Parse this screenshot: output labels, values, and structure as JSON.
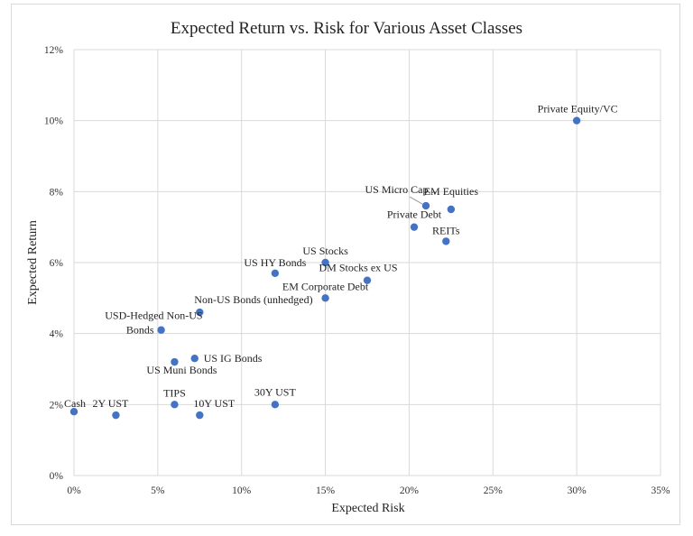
{
  "chart_data": {
    "type": "scatter",
    "title": "Expected Return vs. Risk for Various Asset Classes",
    "xlabel": "Expected Risk",
    "ylabel": "Expected Return",
    "xlim": [
      0,
      0.35
    ],
    "ylim": [
      0,
      0.12
    ],
    "x_ticks": [
      0,
      0.05,
      0.1,
      0.15,
      0.2,
      0.25,
      0.3,
      0.35
    ],
    "x_tick_labels": [
      "0%",
      "5%",
      "10%",
      "15%",
      "20%",
      "25%",
      "30%",
      "35%"
    ],
    "y_ticks": [
      0,
      0.02,
      0.04,
      0.06,
      0.08,
      0.1,
      0.12
    ],
    "y_tick_labels": [
      "0%",
      "2%",
      "4%",
      "6%",
      "8%",
      "10%",
      "12%"
    ],
    "grid": true,
    "marker_color": "#4472C4",
    "points": [
      {
        "label": "Cash",
        "x": 0.0,
        "y": 0.018
      },
      {
        "label": "2Y UST",
        "x": 0.025,
        "y": 0.017
      },
      {
        "label": "TIPS",
        "x": 0.06,
        "y": 0.02
      },
      {
        "label": "10Y UST",
        "x": 0.075,
        "y": 0.017
      },
      {
        "label": "30Y UST",
        "x": 0.12,
        "y": 0.02
      },
      {
        "label": "US Muni Bonds",
        "x": 0.06,
        "y": 0.032
      },
      {
        "label": "US IG Bonds",
        "x": 0.072,
        "y": 0.033
      },
      {
        "label": "USD-Hedged Non-US Bonds",
        "x": 0.052,
        "y": 0.041
      },
      {
        "label": "Non-US Bonds (unhedged)",
        "x": 0.075,
        "y": 0.046
      },
      {
        "label": "US HY Bonds",
        "x": 0.12,
        "y": 0.057
      },
      {
        "label": "US Stocks",
        "x": 0.15,
        "y": 0.06
      },
      {
        "label": "EM Corporate Debt",
        "x": 0.15,
        "y": 0.05
      },
      {
        "label": "DM Stocks ex US",
        "x": 0.175,
        "y": 0.055
      },
      {
        "label": "Private Debt",
        "x": 0.203,
        "y": 0.07
      },
      {
        "label": "US Micro Cap...",
        "x": 0.21,
        "y": 0.076
      },
      {
        "label": "EM Equities",
        "x": 0.225,
        "y": 0.075
      },
      {
        "label": "REITs",
        "x": 0.222,
        "y": 0.066
      },
      {
        "label": "Private Equity/VC",
        "x": 0.3,
        "y": 0.1
      }
    ]
  }
}
